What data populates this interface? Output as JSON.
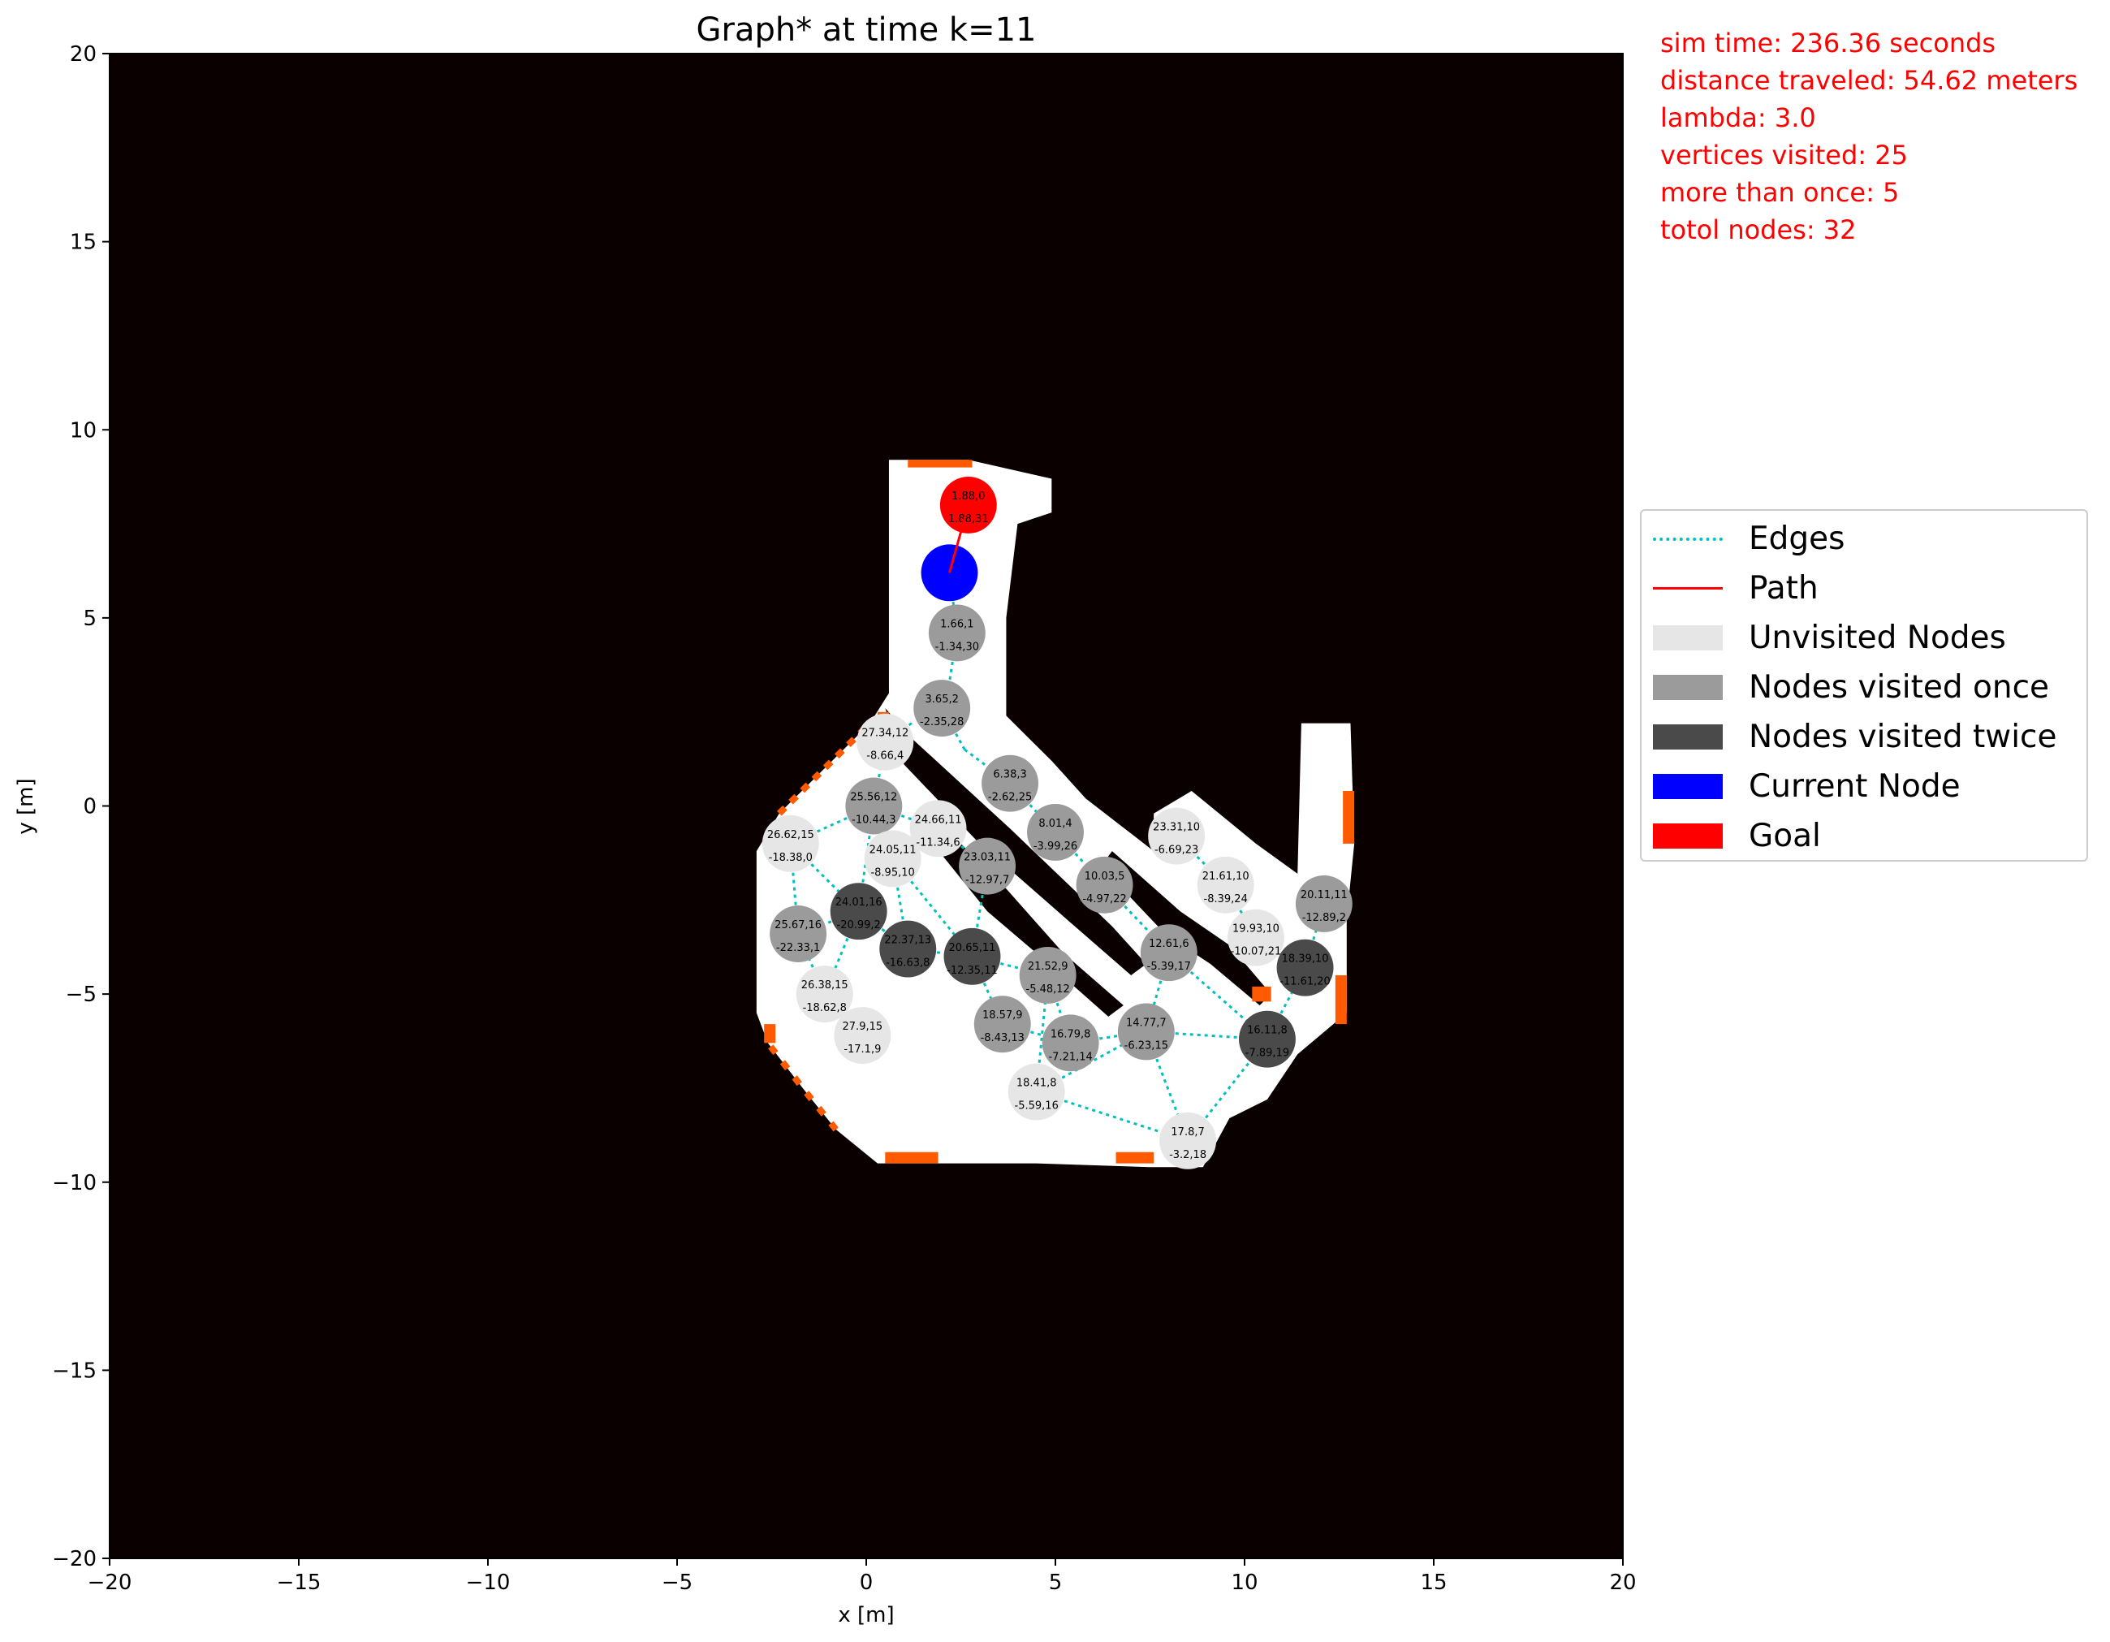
{
  "chart_data": {
    "type": "scatter",
    "title": "Graph* at time k=11",
    "xlabel": "x [m]",
    "ylabel": "y [m]",
    "xlim": [
      -20,
      20
    ],
    "ylim": [
      -20,
      20
    ],
    "xticks": [
      -20,
      -15,
      -10,
      -5,
      0,
      5,
      10,
      15,
      20
    ],
    "yticks": [
      -20,
      -15,
      -10,
      -5,
      0,
      5,
      10,
      15,
      20
    ],
    "xtick_labels": [
      "−20",
      "−15",
      "−10",
      "−5",
      "0",
      "5",
      "10",
      "15",
      "20"
    ],
    "ytick_labels": [
      "−20",
      "−15",
      "−10",
      "−5",
      "0",
      "5",
      "10",
      "15",
      "20"
    ],
    "background": "occupancy grid map (unknown=black, free=white, frontier=orange)",
    "colors": {
      "unknown": "#0a0000",
      "free": "#ffffff",
      "frontier": "#ff5a00",
      "edge": "#00bfbf",
      "path": "#ff0000",
      "unvisited": "#e6e6e6",
      "visited_once": "#9b9b9b",
      "visited_twice": "#4a4a4a",
      "current": "#0000ff",
      "goal": "#ff0000"
    },
    "legend_position": "outside right",
    "legend": [
      {
        "label": "Edges",
        "kind": "dotted-line",
        "color": "#00bfbf"
      },
      {
        "label": "Path",
        "kind": "line",
        "color": "#ff0000"
      },
      {
        "label": "Unvisited Nodes",
        "kind": "patch",
        "color": "#e6e6e6"
      },
      {
        "label": "Nodes visited once",
        "kind": "patch",
        "color": "#9b9b9b"
      },
      {
        "label": "Nodes visited twice",
        "kind": "patch",
        "color": "#4a4a4a"
      },
      {
        "label": "Current Node",
        "kind": "patch",
        "color": "#0000ff"
      },
      {
        "label": "Goal",
        "kind": "patch",
        "color": "#ff0000"
      }
    ],
    "nodes": [
      {
        "x": 2.7,
        "y": 8.0,
        "state": "goal",
        "l1": "1.88,0",
        "l2": "1.88,31"
      },
      {
        "x": 2.2,
        "y": 6.2,
        "state": "current",
        "l1": "",
        "l2": ""
      },
      {
        "x": 2.4,
        "y": 4.6,
        "state": "once",
        "l1": "1.66,1",
        "l2": "-1.34,30"
      },
      {
        "x": 2.0,
        "y": 2.6,
        "state": "once",
        "l1": "3.65,2",
        "l2": "-2.35,28"
      },
      {
        "x": 0.5,
        "y": 1.7,
        "state": "unvisited",
        "l1": "27.34,12",
        "l2": "-8.66,4"
      },
      {
        "x": 3.8,
        "y": 0.6,
        "state": "once",
        "l1": "6.38,3",
        "l2": "-2.62,25"
      },
      {
        "x": 0.2,
        "y": 0.0,
        "state": "once",
        "l1": "25.56,12",
        "l2": "-10.44,3"
      },
      {
        "x": 1.9,
        "y": -0.6,
        "state": "unvisited",
        "l1": "24.66,11",
        "l2": "-11.34,6"
      },
      {
        "x": -2.0,
        "y": -1.0,
        "state": "unvisited",
        "l1": "26.62,15",
        "l2": "-18.38,0"
      },
      {
        "x": 5.0,
        "y": -0.7,
        "state": "once",
        "l1": "8.01,4",
        "l2": "-3.99,26"
      },
      {
        "x": 0.7,
        "y": -1.4,
        "state": "unvisited",
        "l1": "24.05,11",
        "l2": "-8.95,10"
      },
      {
        "x": 3.2,
        "y": -1.6,
        "state": "once",
        "l1": "23.03,11",
        "l2": "-12.97,7"
      },
      {
        "x": 6.3,
        "y": -2.1,
        "state": "once",
        "l1": "10.03,5",
        "l2": "-4.97,22"
      },
      {
        "x": 8.2,
        "y": -0.8,
        "state": "unvisited",
        "l1": "23.31,10",
        "l2": "-6.69,23"
      },
      {
        "x": 9.5,
        "y": -2.1,
        "state": "unvisited",
        "l1": "21.61,10",
        "l2": "-8.39,24"
      },
      {
        "x": 12.1,
        "y": -2.6,
        "state": "once",
        "l1": "20.11,11",
        "l2": "-12.89,2"
      },
      {
        "x": -0.2,
        "y": -2.8,
        "state": "twice",
        "l1": "24.01,16",
        "l2": "-20.99,2"
      },
      {
        "x": -1.8,
        "y": -3.4,
        "state": "once",
        "l1": "25.67,16",
        "l2": "-22.33,1"
      },
      {
        "x": 1.1,
        "y": -3.8,
        "state": "twice",
        "l1": "22.37,13",
        "l2": "-16.63,8"
      },
      {
        "x": 2.8,
        "y": -4.0,
        "state": "twice",
        "l1": "20.65,11",
        "l2": "-12.35,11"
      },
      {
        "x": 10.3,
        "y": -3.5,
        "state": "unvisited",
        "l1": "19.93,10",
        "l2": "-10.07,21"
      },
      {
        "x": 8.0,
        "y": -3.9,
        "state": "once",
        "l1": "12.61,6",
        "l2": "-5.39,17"
      },
      {
        "x": 11.6,
        "y": -4.3,
        "state": "twice",
        "l1": "18.39,10",
        "l2": "-11.61,20"
      },
      {
        "x": 4.8,
        "y": -4.5,
        "state": "once",
        "l1": "21.52,9",
        "l2": "-5.48,12"
      },
      {
        "x": -1.1,
        "y": -5.0,
        "state": "unvisited",
        "l1": "26.38,15",
        "l2": "-18.62,8"
      },
      {
        "x": 3.6,
        "y": -5.8,
        "state": "once",
        "l1": "18.57,9",
        "l2": "-8.43,13"
      },
      {
        "x": 5.4,
        "y": -6.3,
        "state": "once",
        "l1": "16.79,8",
        "l2": "-7.21,14"
      },
      {
        "x": 7.4,
        "y": -6.0,
        "state": "once",
        "l1": "14.77,7",
        "l2": "-6.23,15"
      },
      {
        "x": 10.6,
        "y": -6.2,
        "state": "twice",
        "l1": "16.11,8",
        "l2": "-7.89,19"
      },
      {
        "x": -0.1,
        "y": -6.1,
        "state": "unvisited",
        "l1": "27.9,15",
        "l2": "-17.1,9"
      },
      {
        "x": 4.5,
        "y": -7.6,
        "state": "unvisited",
        "l1": "18.41,8",
        "l2": "-5.59,16"
      },
      {
        "x": 8.5,
        "y": -8.9,
        "state": "unvisited",
        "l1": "17.8,7",
        "l2": "-3.2,18"
      }
    ],
    "edges": [
      [
        2.2,
        6.2,
        2.4,
        4.6
      ],
      [
        2.4,
        4.6,
        2.2,
        3.3
      ],
      [
        2.0,
        2.6,
        2.6,
        1.5
      ],
      [
        2.6,
        1.5,
        3.8,
        0.6
      ],
      [
        3.8,
        0.6,
        5.0,
        -0.7
      ],
      [
        5.0,
        -0.7,
        6.3,
        -2.1
      ],
      [
        6.3,
        -2.1,
        8.0,
        -3.9
      ],
      [
        8.0,
        -3.9,
        10.6,
        -6.2
      ],
      [
        8.0,
        -3.9,
        7.4,
        -6.0
      ],
      [
        7.4,
        -6.0,
        8.5,
        -8.9
      ],
      [
        8.5,
        -8.9,
        10.6,
        -6.2
      ],
      [
        4.5,
        -7.6,
        8.5,
        -8.9
      ],
      [
        10.6,
        -6.2,
        11.6,
        -4.3
      ],
      [
        11.6,
        -4.3,
        12.1,
        -2.6
      ],
      [
        10.3,
        -3.5,
        11.6,
        -4.3
      ],
      [
        9.5,
        -2.1,
        10.3,
        -3.5
      ],
      [
        8.2,
        -0.8,
        9.5,
        -2.1
      ],
      [
        7.4,
        -6.0,
        10.6,
        -6.2
      ],
      [
        5.4,
        -6.3,
        7.4,
        -6.0
      ],
      [
        4.8,
        -4.5,
        5.4,
        -6.3
      ],
      [
        4.5,
        -7.6,
        4.8,
        -4.5
      ],
      [
        4.5,
        -7.6,
        7.4,
        -6.0
      ],
      [
        3.6,
        -5.8,
        5.4,
        -6.3
      ],
      [
        2.8,
        -4.0,
        3.6,
        -5.8
      ],
      [
        2.8,
        -4.0,
        4.8,
        -4.5
      ],
      [
        1.1,
        -3.8,
        2.8,
        -4.0
      ],
      [
        -0.2,
        -2.8,
        1.1,
        -3.8
      ],
      [
        -0.2,
        -2.8,
        0.2,
        0.0
      ],
      [
        -0.2,
        -2.8,
        -1.8,
        -3.4
      ],
      [
        -0.2,
        -2.8,
        -1.1,
        -5.0
      ],
      [
        -1.1,
        -5.0,
        -0.1,
        -6.1
      ],
      [
        -2.0,
        -1.0,
        -1.8,
        -3.4
      ],
      [
        -2.0,
        -1.0,
        0.2,
        0.0
      ],
      [
        -2.0,
        -1.0,
        -0.2,
        -2.8
      ],
      [
        0.2,
        0.0,
        0.5,
        1.7
      ],
      [
        0.5,
        1.7,
        1.2,
        2.2
      ],
      [
        0.2,
        0.0,
        1.9,
        -0.6
      ],
      [
        1.9,
        -0.6,
        3.2,
        -1.6
      ],
      [
        0.7,
        -1.4,
        1.9,
        -0.6
      ],
      [
        0.7,
        -1.4,
        1.1,
        -3.8
      ],
      [
        0.7,
        -1.4,
        2.8,
        -4.0
      ],
      [
        3.2,
        -1.6,
        2.8,
        -4.0
      ],
      [
        1.1,
        -3.8,
        -0.2,
        -2.8
      ],
      [
        -1.1,
        -5.0,
        -1.8,
        -3.4
      ],
      [
        0.2,
        0.0,
        0.7,
        -1.4
      ]
    ],
    "path": [
      [
        2.2,
        6.2
      ],
      [
        2.7,
        8.0
      ]
    ]
  },
  "info": {
    "sim_time": "sim time: 236.36 seconds",
    "distance": "distance traveled: 54.62 meters",
    "lambda": "lambda: 3.0",
    "vertices": "vertices visited: 25",
    "more_than_once": "more than once: 5",
    "total_nodes": "totol nodes: 32"
  }
}
